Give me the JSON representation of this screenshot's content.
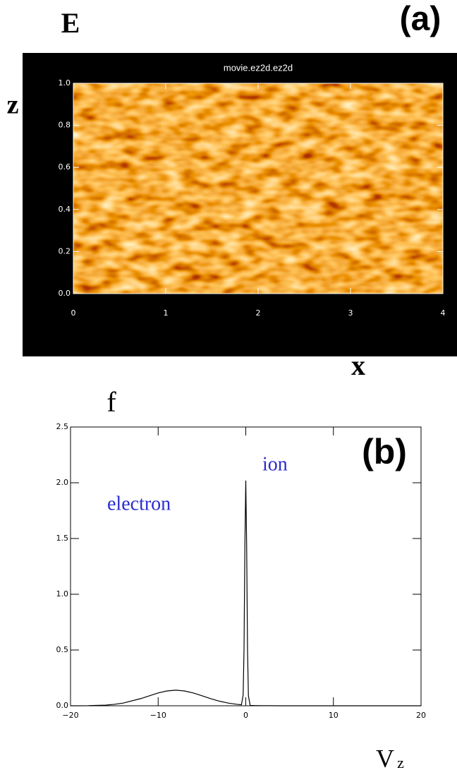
{
  "chart_data": [
    {
      "type": "heatmap",
      "title": "movie.ez2d.ez2d",
      "panel_label": "(a)",
      "field_label": "E",
      "x_label": "x",
      "y_label": "z",
      "xlim": [
        0,
        4
      ],
      "ylim": [
        0,
        1
      ],
      "xticks": [
        0,
        1,
        2,
        3,
        4
      ],
      "yticks": [
        {
          "value": 0,
          "label": "0.0"
        },
        0.2,
        0.4,
        0.6,
        0.8,
        {
          "value": 1,
          "label": "1.0"
        }
      ]
    },
    {
      "type": "line",
      "panel_label": "(b)",
      "y_label": "f",
      "x_label": "V",
      "x_label_subscript": "z",
      "annotations": [
        "ion",
        "electron"
      ],
      "annotation_color": "#2b2bd0",
      "x": [
        -20,
        -18,
        -16,
        -15,
        -14,
        -12,
        -10,
        -9,
        -8,
        -7,
        -6,
        -5,
        -4,
        -3,
        -2,
        -1,
        -0.5,
        -0.3,
        -0.2,
        -0.1,
        0,
        0.1,
        0.2,
        0.3,
        0.5,
        1,
        2,
        4,
        6,
        8,
        10,
        15,
        20
      ],
      "series": [
        {
          "color": "#000000",
          "values": [
            0,
            0.001,
            0.006,
            0.013,
            0.024,
            0.064,
            0.115,
            0.133,
            0.14,
            0.133,
            0.115,
            0.09,
            0.064,
            0.041,
            0.024,
            0.013,
            0.009,
            0.096,
            0.507,
            1.44,
            2.02,
            1.43,
            0.5,
            0.09,
            0.003,
            0.002,
            0.001,
            0,
            0,
            0,
            0,
            0,
            0
          ]
        }
      ],
      "xlim": [
        -20,
        20
      ],
      "ylim": [
        0,
        2.5
      ],
      "xticks": [
        {
          "value": -20,
          "label": "−20"
        },
        {
          "value": -10,
          "label": "−10"
        },
        0,
        10,
        20
      ],
      "yticks": [
        {
          "value": 0,
          "label": "0.0"
        },
        0.5,
        {
          "value": 1,
          "label": "1.0"
        },
        1.5,
        {
          "value": 2,
          "label": "2.0"
        },
        2.5
      ]
    }
  ]
}
